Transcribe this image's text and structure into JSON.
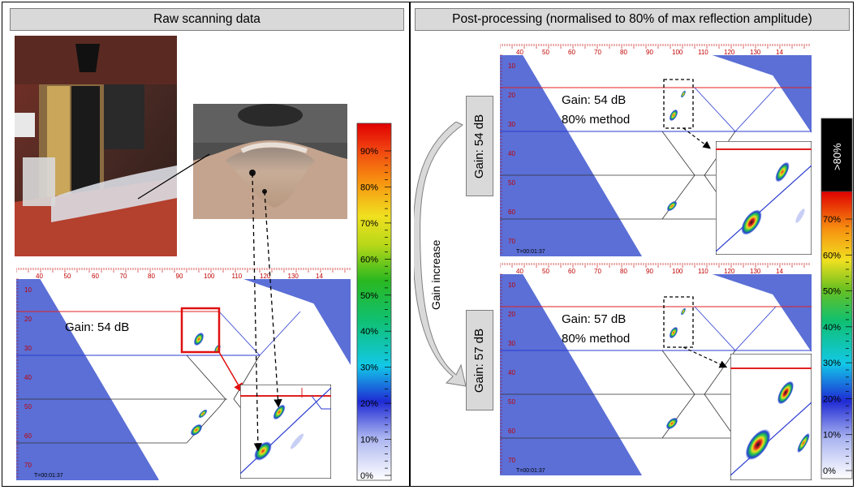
{
  "headers": {
    "left": "Raw scanning data",
    "right": "Post-processing (normalised to 80% of max reflection amplitude)"
  },
  "scans": {
    "axis_ticks": [
      "40",
      "50",
      "60",
      "70",
      "80",
      "90",
      "100",
      "110",
      "120",
      "130",
      "14"
    ],
    "depth_ticks": [
      "10",
      "20",
      "30",
      "40",
      "50",
      "60",
      "70"
    ],
    "time": "T=00:01:37"
  },
  "raw": {
    "gain": "Gain: 54 dB"
  },
  "post_top": {
    "gain": "Gain: 54 dB",
    "method": "80% method",
    "side_label": "Gain: 54 dB"
  },
  "post_bottom": {
    "gain": "Gain: 57 dB",
    "method": "80% method",
    "side_label": "Gain: 57 dB"
  },
  "gain_increase_label": "Gain increase",
  "colorbar_left": {
    "ticks": [
      "90%",
      "80%",
      "70%",
      "60%",
      "50%",
      "40%",
      "30%",
      "20%",
      "10%",
      "0%"
    ]
  },
  "colorbar_right": {
    "top_label": ">80%",
    "ticks": [
      "70%",
      "60%",
      "50%",
      "40%",
      "30%",
      "20%",
      "10%",
      "0%"
    ]
  },
  "colors": {
    "scan_blue": "#5b6fd6",
    "red_line": "#e02020",
    "blue_line": "#2a3bd0",
    "highlight_box": "#e01010"
  }
}
